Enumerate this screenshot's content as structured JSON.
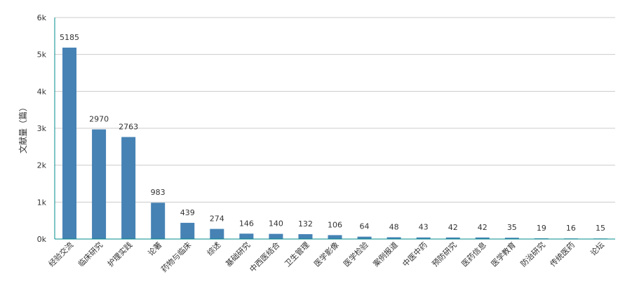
{
  "chart_data": {
    "type": "bar",
    "ylabel": "文献量（篇）",
    "ylim": [
      0,
      6000
    ],
    "yticks": [
      0,
      1000,
      2000,
      3000,
      4000,
      5000,
      6000
    ],
    "ytick_labels": [
      "0k",
      "1k",
      "2k",
      "3k",
      "4k",
      "5k",
      "6k"
    ],
    "grid": true,
    "categories": [
      "经验交流",
      "临床研究",
      "护理实践",
      "论著",
      "药物与临床",
      "综述",
      "基础研究",
      "中西医结合",
      "卫生管理",
      "医学影像",
      "医学检验",
      "案例报道",
      "中医中药",
      "预防研究",
      "医药信息",
      "医学教育",
      "防治研究",
      "传统医药",
      "论坛"
    ],
    "values": [
      5185,
      2970,
      2763,
      983,
      439,
      274,
      146,
      140,
      132,
      106,
      64,
      48,
      43,
      42,
      42,
      35,
      19,
      16,
      15
    ],
    "bar_color": "#4682b4",
    "grid_color": "#cccccc",
    "axis_color": "#008b8b"
  }
}
